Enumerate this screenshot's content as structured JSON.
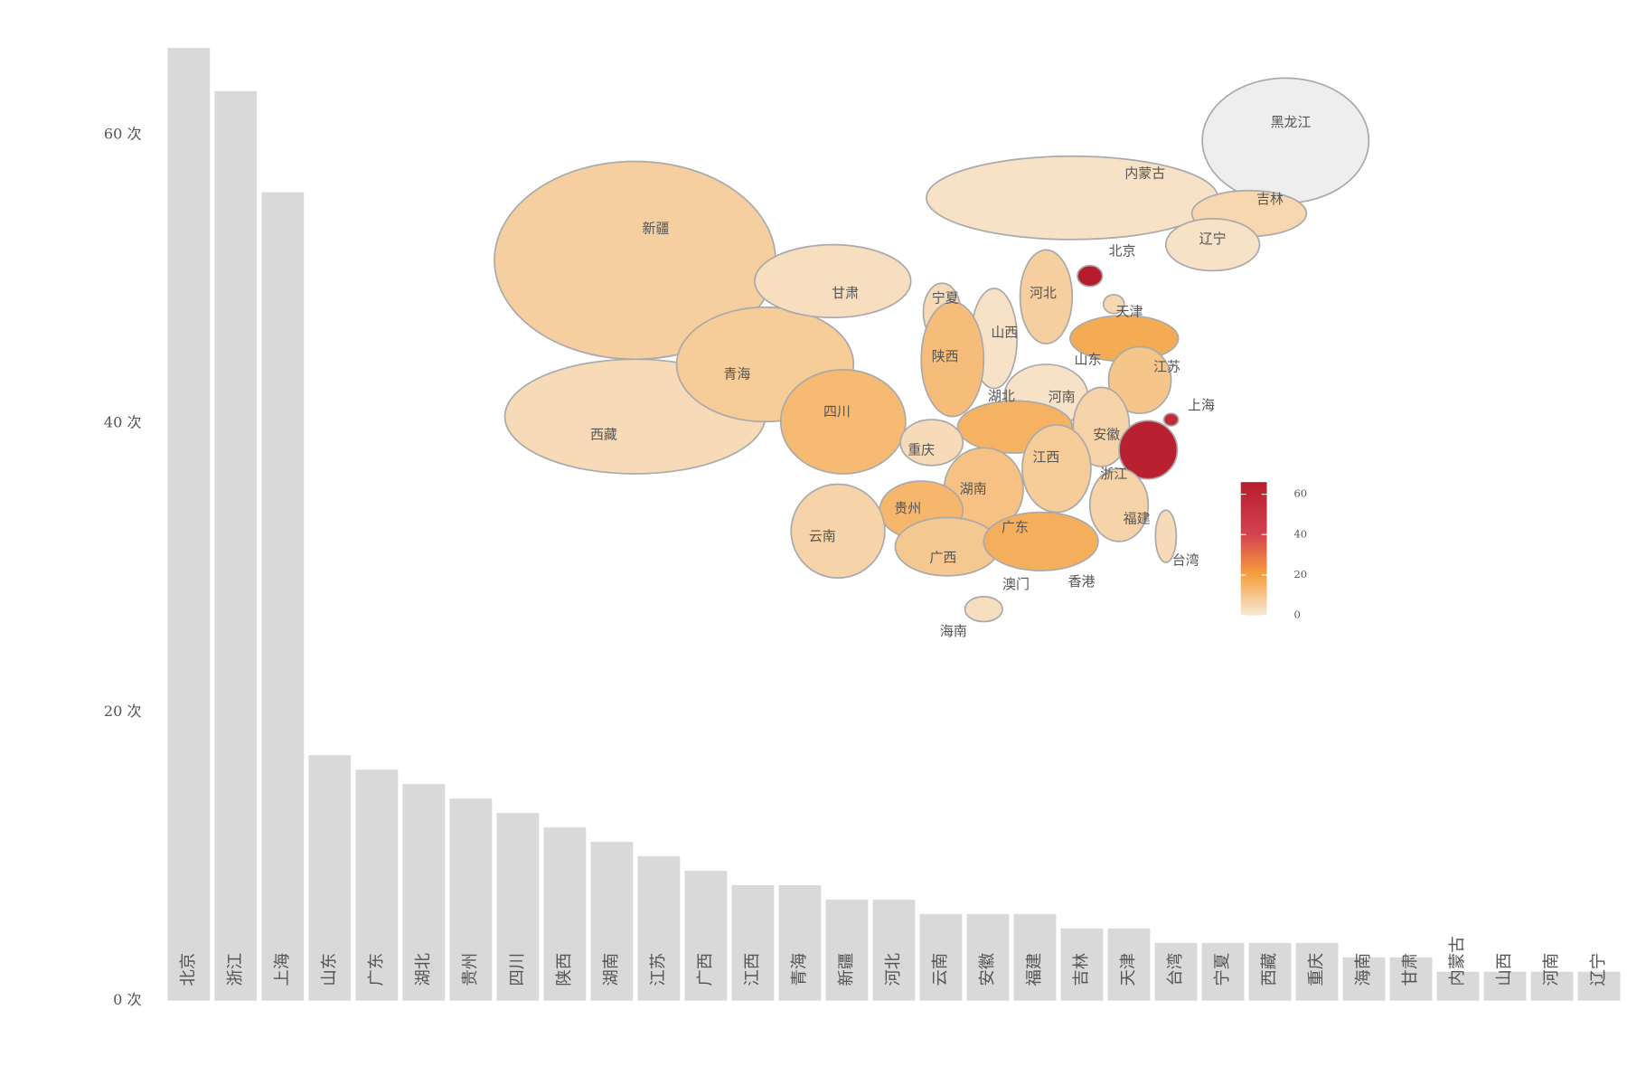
{
  "chart_data": [
    {
      "type": "bar",
      "categories": [
        "北京",
        "浙江",
        "上海",
        "山东",
        "广东",
        "湖北",
        "贵州",
        "四川",
        "陕西",
        "湖南",
        "江苏",
        "广西",
        "江西",
        "青海",
        "新疆",
        "河北",
        "云南",
        "安徽",
        "福建",
        "吉林",
        "天津",
        "台湾",
        "宁夏",
        "西藏",
        "重庆",
        "海南",
        "甘肃",
        "内蒙古",
        "山西",
        "河南",
        "辽宁"
      ],
      "values": [
        66,
        63,
        56,
        17,
        16,
        15,
        14,
        13,
        12,
        11,
        10,
        9,
        8,
        8,
        7,
        7,
        6,
        6,
        6,
        5,
        5,
        4,
        4,
        4,
        4,
        3,
        3,
        2,
        2,
        2,
        2
      ],
      "color": "#d9d9d9",
      "ylim": [
        0,
        66
      ],
      "yticks": [
        {
          "value": 0,
          "label": "0 次"
        },
        {
          "value": 20,
          "label": "20 次"
        },
        {
          "value": 40,
          "label": "40 次"
        },
        {
          "value": 60,
          "label": "60 次"
        }
      ]
    },
    {
      "type": "map",
      "regions": [
        "新疆",
        "西藏",
        "青海",
        "甘肃",
        "内蒙古",
        "黑龙江",
        "吉林",
        "辽宁",
        "北京",
        "天津",
        "河北",
        "山西",
        "宁夏",
        "陕西",
        "山东",
        "河南",
        "江苏",
        "上海",
        "安徽",
        "浙江",
        "湖北",
        "四川",
        "重庆",
        "江西",
        "湖南",
        "贵州",
        "云南",
        "广西",
        "广东",
        "福建",
        "海南",
        "台湾",
        "香港",
        "澳门"
      ],
      "missing_color": "#eeeeee",
      "colorbar": {
        "lim": [
          0,
          66
        ],
        "ticks": [
          0,
          20,
          40,
          60
        ],
        "stops": [
          [
            0,
            "#f7e9d6"
          ],
          [
            20,
            "#f5a03d"
          ],
          [
            40,
            "#d4434f"
          ],
          [
            66,
            "#b71c2c"
          ]
        ]
      }
    }
  ]
}
